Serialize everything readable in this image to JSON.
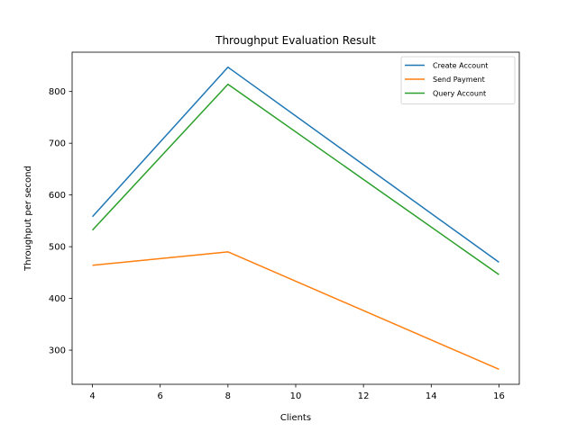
{
  "chart_data": {
    "type": "line",
    "title": "Throughput Evaluation Result",
    "xlabel": "Clients",
    "ylabel": "Throughput per second",
    "x": [
      4,
      8,
      16
    ],
    "series": [
      {
        "name": "Create Account",
        "values": [
          558,
          847,
          470
        ],
        "color": "#1f77b4"
      },
      {
        "name": "Send Payment",
        "values": [
          464,
          490,
          263
        ],
        "color": "#ff7f0e"
      },
      {
        "name": "Query Account",
        "values": [
          532,
          814,
          446
        ],
        "color": "#2ca02c"
      }
    ],
    "xlim": [
      3.4,
      16.6
    ],
    "ylim": [
      234,
      876
    ],
    "xticks": [
      4,
      6,
      8,
      10,
      12,
      14,
      16
    ],
    "yticks": [
      300,
      400,
      500,
      600,
      700,
      800
    ],
    "legend_position": "top-right",
    "grid": false
  }
}
